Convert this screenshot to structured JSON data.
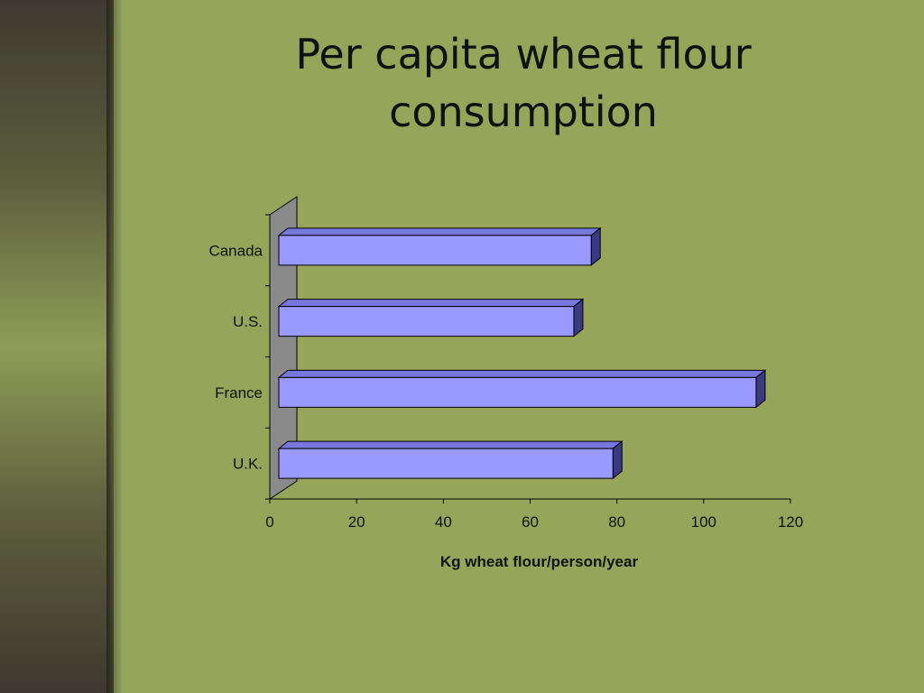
{
  "slide": {
    "title_line1": "Per capita wheat flour",
    "title_line2": "consumption"
  },
  "chart_data": {
    "type": "bar",
    "orientation": "horizontal",
    "style": "3d",
    "categories": [
      "Canada",
      "U.S.",
      "France",
      "U.K."
    ],
    "values": [
      72,
      68,
      110,
      77
    ],
    "title": "",
    "xlabel": "Kg wheat flour/person/year",
    "ylabel": "",
    "xlim": [
      0,
      120
    ],
    "xticks": [
      "0",
      "20",
      "40",
      "60",
      "80",
      "100",
      "120"
    ],
    "grid": false,
    "legend": "none",
    "colors": {
      "bar_front": "#9999ff",
      "bar_top": "#7777dd",
      "bar_side": "#3a3a80",
      "wall": "#8a8a8a"
    }
  }
}
